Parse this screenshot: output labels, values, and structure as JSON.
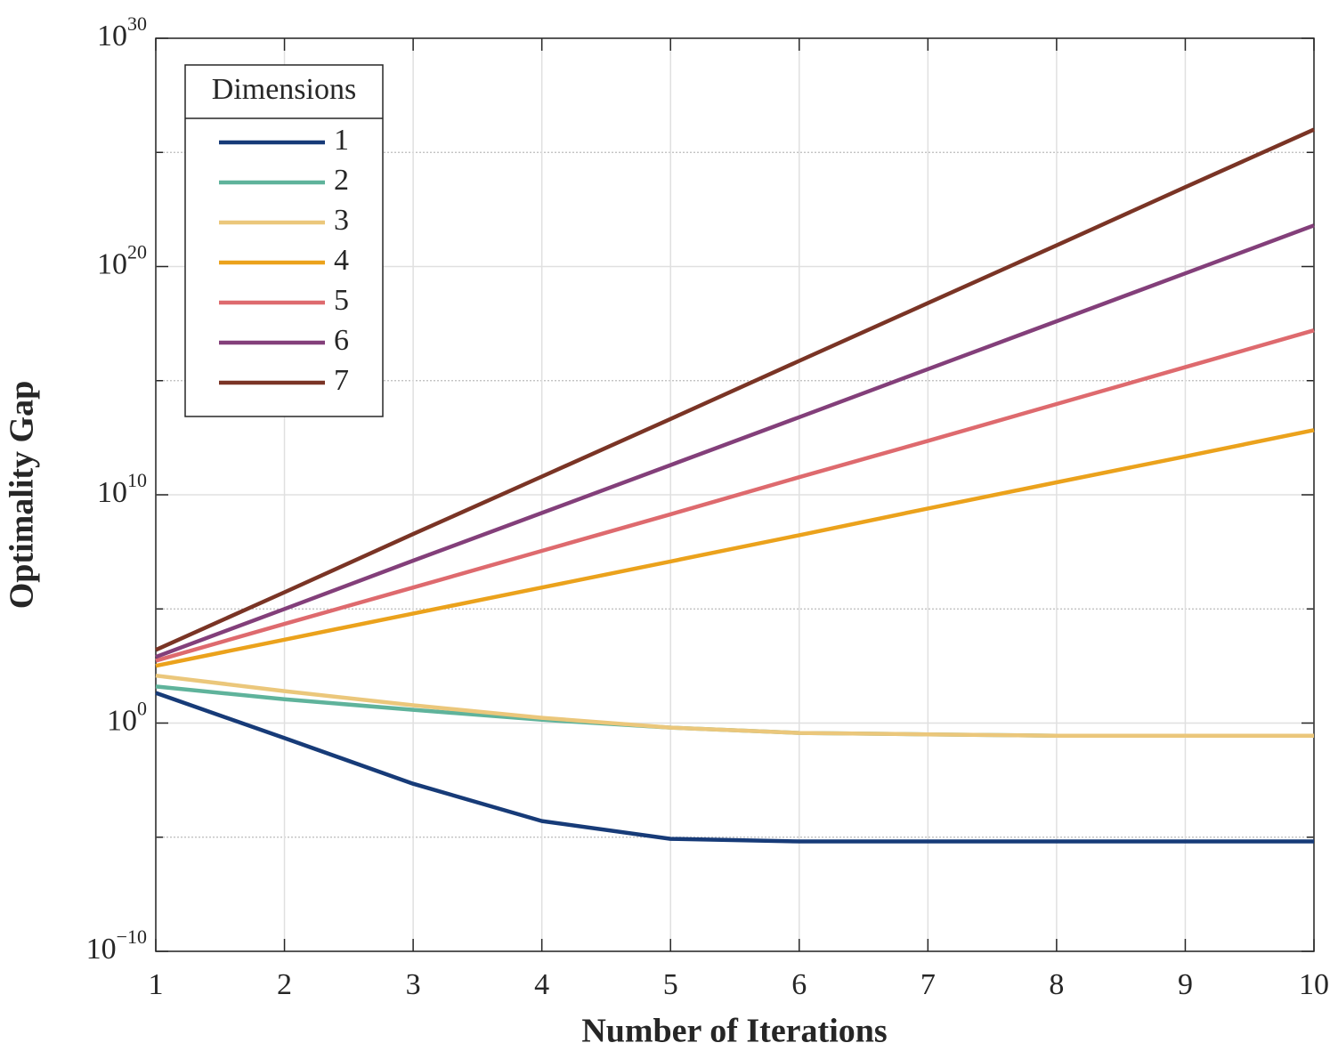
{
  "chart_data": {
    "type": "line",
    "xlabel": "Number of Iterations",
    "ylabel": "Optimality Gap",
    "legend_title": "Dimensions",
    "legend": "upper left",
    "grid": true,
    "yscale": "log",
    "x": [
      1,
      2,
      3,
      4,
      5,
      6,
      7,
      8,
      9,
      10
    ],
    "xlim": [
      1,
      10
    ],
    "xticks": [
      1,
      2,
      3,
      4,
      5,
      6,
      7,
      8,
      9,
      10
    ],
    "ylim": [
      1e-10,
      1e+30
    ],
    "yticks": [
      {
        "value": 1e-10,
        "label": "10^−10"
      },
      {
        "value": 1,
        "label": "10^0"
      },
      {
        "value": 10000000000.0,
        "label": "10^10"
      },
      {
        "value": 1e+20,
        "label": "10^20"
      },
      {
        "value": 1e+30,
        "label": "10^30"
      }
    ],
    "yminorticks": [
      1e-05,
      100000.0,
      1000000000000000.0,
      1e+25
    ],
    "series": [
      {
        "name": "1",
        "color": "#173b78",
        "values": [
          21,
          0.22,
          0.0022,
          5.1e-05,
          8.5e-06,
          6.5e-06,
          6.5e-06,
          6.5e-06,
          6.5e-06,
          6.5e-06
        ]
      },
      {
        "name": "2",
        "color": "#5fb39b",
        "values": [
          40,
          11,
          3.8,
          1.4,
          0.63,
          0.37,
          0.32,
          0.28,
          0.28,
          0.28
        ]
      },
      {
        "name": "3",
        "color": "#ebc77b",
        "values": [
          120,
          25,
          6,
          1.7,
          0.63,
          0.37,
          0.32,
          0.28,
          0.28,
          0.28
        ]
      },
      {
        "name": "4",
        "color": "#eba21c",
        "values": [
          320,
          4500,
          63000,
          870000,
          12000000.0,
          170000000.0,
          2500000000.0,
          35000000000.0,
          480000000000.0,
          6800000000000.0
        ]
      },
      {
        "name": "5",
        "color": "#de6a6e",
        "values": [
          540,
          22000,
          870000,
          35000000.0,
          1400000000.0,
          59000000000.0,
          2300000000000.0,
          95000000000000.0,
          3900000000000000.0,
          1.6e+17
        ]
      },
      {
        "name": "6",
        "color": "#833f7a",
        "values": [
          790,
          100000,
          13000000.0,
          1600000000.0,
          200000000000.0,
          25000000000000.0,
          3200000000000000.0,
          4e+17,
          5e+19,
          6.3e+21
        ]
      },
      {
        "name": "7",
        "color": "#7a3425",
        "values": [
          1600,
          540000,
          190000000.0,
          63000000000.0,
          21000000000000.0,
          7400000000000000.0,
          2.5e+18,
          8.5e+20,
          3e+23,
          1e+26
        ]
      }
    ]
  }
}
